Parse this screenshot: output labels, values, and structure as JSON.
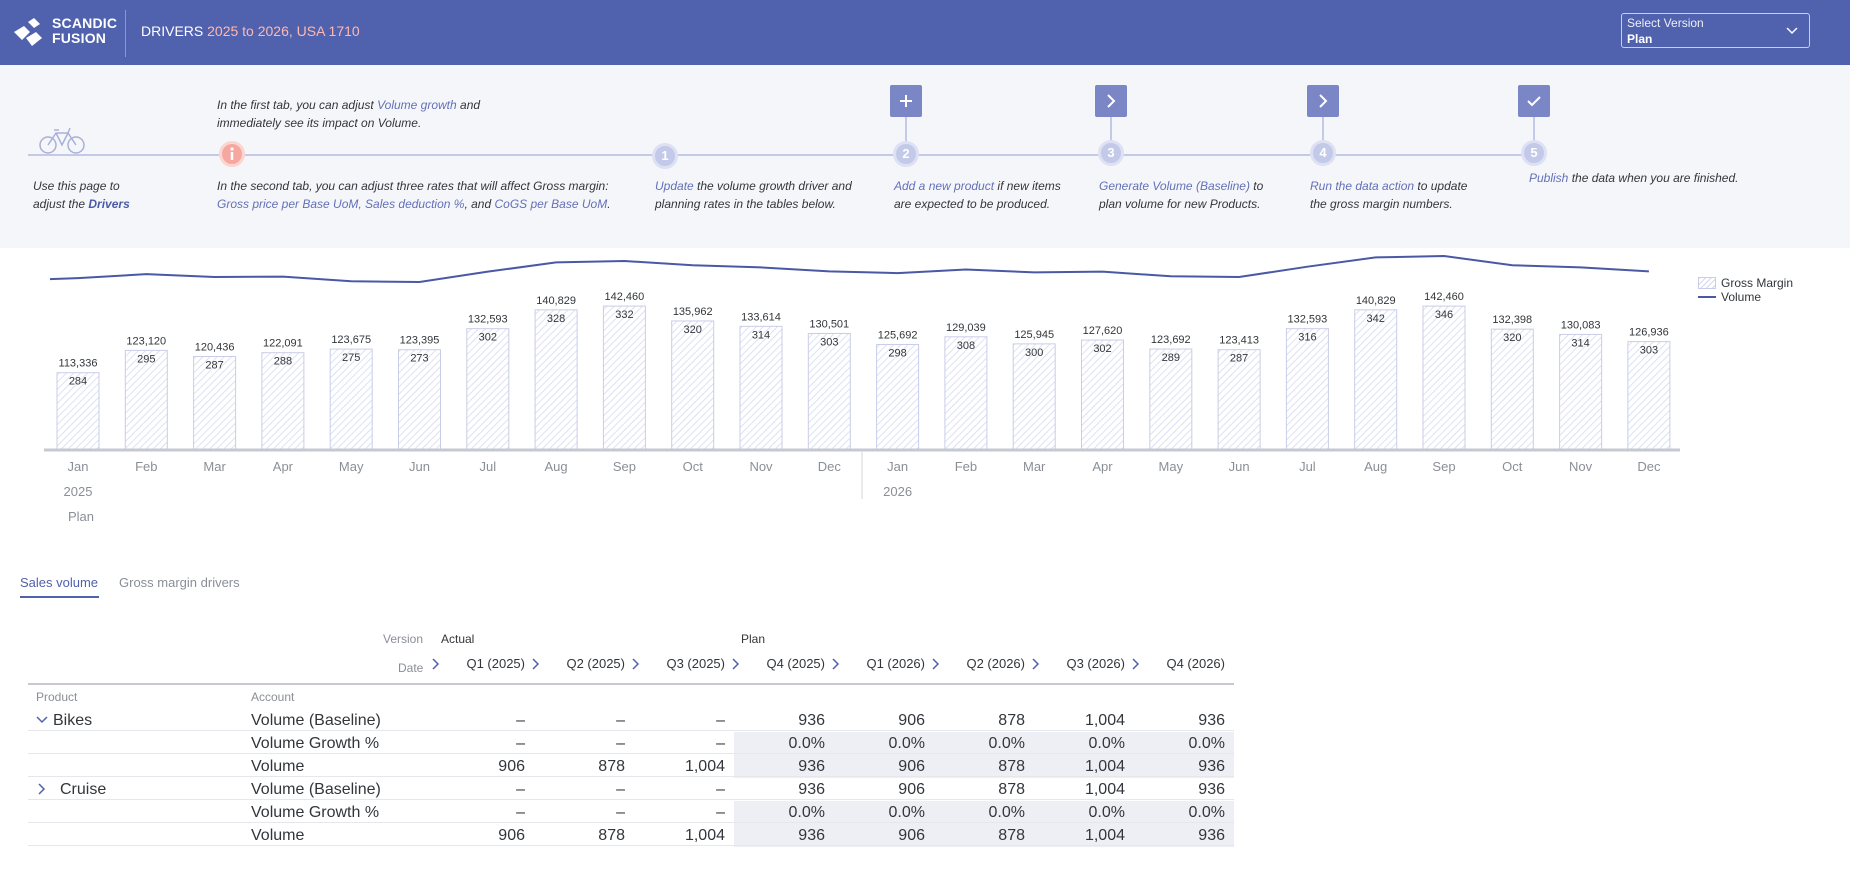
{
  "header": {
    "logo_line1": "SCANDIC",
    "logo_line2": "FUSION",
    "title_prefix": "DRIVERS ",
    "title_accent": "2025 to 2026, USA 1710",
    "version_label": "Select Version",
    "version_value": "Plan",
    "brand_color": "#5061ad"
  },
  "band": {
    "intro_a": "Use this page to",
    "intro_b": "adjust the ",
    "intro_link": "Drivers",
    "tab1_a": "In the first tab, you can adjust ",
    "tab1_link": "Volume growth",
    "tab1_b": " and",
    "tab1_c": "immediately see its impact on Volume.",
    "tab2_a": "In the second tab, you can adjust three rates that will affect Gross margin:",
    "tab2_link1": "Gross price per Base UoM, Sales deduction %",
    "tab2_mid": ", and ",
    "tab2_link2": "CoGS per Base UoM",
    "tab2_end": ".",
    "steps": [
      {
        "num": "1",
        "link": "Update",
        "rest1": " the volume growth driver and",
        "rest2": "planning rates in the tables below."
      },
      {
        "num": "2",
        "link": "Add a new product",
        "rest1": " if new items",
        "rest2": "are expected to be produced."
      },
      {
        "num": "3",
        "link": "Generate Volume (Baseline)",
        "rest1": " to",
        "rest2": "plan volume for new Products."
      },
      {
        "num": "4",
        "link": "Run the data action",
        "rest1": " to update",
        "rest2": "the gross margin numbers."
      },
      {
        "num": "5",
        "link": "Publish",
        "rest1": " the data when you are finished.",
        "rest2": ""
      }
    ]
  },
  "chart_data": {
    "type": "bar",
    "categories": [
      "Jan",
      "Feb",
      "Mar",
      "Apr",
      "May",
      "Jun",
      "Jul",
      "Aug",
      "Sep",
      "Oct",
      "Nov",
      "Dec",
      "Jan",
      "Feb",
      "Mar",
      "Apr",
      "May",
      "Jun",
      "Jul",
      "Aug",
      "Sep",
      "Oct",
      "Nov",
      "Dec"
    ],
    "year_labels": [
      "2025",
      "2026"
    ],
    "version_label": "Plan",
    "series": [
      {
        "name": "Gross Margin",
        "type": "bar",
        "values": [
          113336,
          123120,
          120436,
          122091,
          123675,
          123395,
          132593,
          140829,
          142460,
          135962,
          133614,
          130501,
          125692,
          129039,
          125945,
          127620,
          123692,
          123413,
          132593,
          140829,
          142460,
          132398,
          130083,
          126936
        ]
      },
      {
        "name": "Volume",
        "type": "line",
        "values": [
          284,
          295,
          287,
          288,
          275,
          273,
          302,
          328,
          332,
          320,
          314,
          303,
          298,
          308,
          300,
          302,
          289,
          287,
          316,
          342,
          346,
          320,
          314,
          303
        ]
      }
    ],
    "legend": "top-right",
    "grid": false
  },
  "tabs": {
    "sales_volume": "Sales volume",
    "gross_margin": "Gross margin drivers"
  },
  "table": {
    "version_hdr": "Version",
    "date_hdr": "Date",
    "actual_label": "Actual",
    "plan_label": "Plan",
    "quarters": [
      "Q1 (2025)",
      "Q2 (2025)",
      "Q3 (2025)",
      "Q4 (2025)",
      "Q1 (2026)",
      "Q2 (2026)",
      "Q3 (2026)",
      "Q4 (2026)"
    ],
    "product_hdr": "Product",
    "account_hdr": "Account",
    "rows": [
      {
        "product": "Bikes",
        "account": "Volume (Baseline)",
        "values": [
          "–",
          "–",
          "–",
          "936",
          "906",
          "878",
          "1,004",
          "936"
        ]
      },
      {
        "product": "",
        "account": "Volume Growth %",
        "values": [
          "–",
          "–",
          "–",
          "0.0%",
          "0.0%",
          "0.0%",
          "0.0%",
          "0.0%"
        ]
      },
      {
        "product": "",
        "account": "Volume",
        "values": [
          "906",
          "878",
          "1,004",
          "936",
          "906",
          "878",
          "1,004",
          "936"
        ]
      },
      {
        "product": "Cruise",
        "account": "Volume (Baseline)",
        "values": [
          "–",
          "–",
          "–",
          "936",
          "906",
          "878",
          "1,004",
          "936"
        ]
      },
      {
        "product": "",
        "account": "Volume Growth %",
        "values": [
          "–",
          "–",
          "–",
          "0.0%",
          "0.0%",
          "0.0%",
          "0.0%",
          "0.0%"
        ]
      },
      {
        "product": "",
        "account": "Volume",
        "values": [
          "906",
          "878",
          "1,004",
          "936",
          "906",
          "878",
          "1,004",
          "936"
        ]
      }
    ]
  }
}
